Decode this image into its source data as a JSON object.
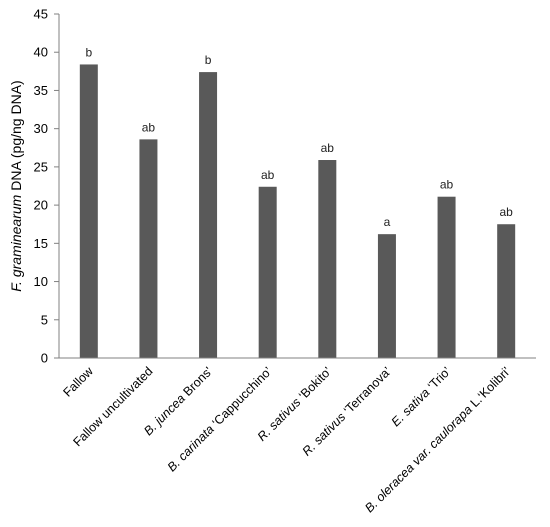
{
  "chart_data": {
    "type": "bar",
    "categories": [
      {
        "label": [
          {
            "t": "Fallow",
            "i": false
          }
        ]
      },
      {
        "label": [
          {
            "t": "Fallow uncultivated",
            "i": false
          }
        ]
      },
      {
        "label": [
          {
            "t": "B. juncea",
            "i": true
          },
          {
            "t": "   Brons'",
            "i": false
          }
        ]
      },
      {
        "label": [
          {
            "t": "B. carinata",
            "i": true
          },
          {
            "t": "   ‘Cappucchino’",
            "i": false
          }
        ]
      },
      {
        "label": [
          {
            "t": "R. sativus",
            "i": true
          },
          {
            "t": "   ‘Bokito’",
            "i": false
          }
        ]
      },
      {
        "label": [
          {
            "t": "R. sativus",
            "i": true
          },
          {
            "t": "   ‘Terranova’",
            "i": false
          }
        ]
      },
      {
        "label": [
          {
            "t": "E. sativa",
            "i": true
          },
          {
            "t": "      ‘Trio’",
            "i": false
          }
        ]
      },
      {
        "label": [
          {
            "t": "B. oleracea var. caulorapa",
            "i": true
          },
          {
            "t": " L.‘Kolibri’",
            "i": false
          }
        ]
      }
    ],
    "values": [
      38.4,
      28.6,
      37.4,
      22.4,
      25.9,
      16.2,
      21.1,
      17.5
    ],
    "significance_letters": [
      "b",
      "ab",
      "b",
      "ab",
      "ab",
      "a",
      "ab",
      "ab"
    ],
    "ylabel_italic": "F. graminearum",
    "ylabel_rest": " DNA (pg/ng DNA)",
    "ylim": [
      0,
      45
    ],
    "yticks": [
      0,
      5,
      10,
      15,
      20,
      25,
      30,
      35,
      40,
      45
    ],
    "bar_color": "#595959",
    "axis_color": "#808080",
    "grid": false,
    "legend": false
  }
}
